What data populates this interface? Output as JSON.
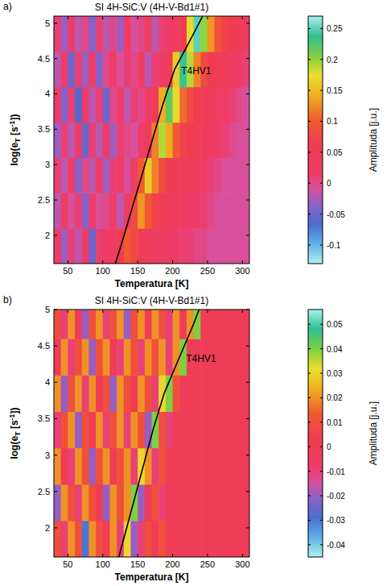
{
  "chart_data": [
    {
      "type": "heatmap",
      "label": "a)",
      "title": "SI 4H-SiC:V (4H-V-Bd1#1)",
      "x_label": "Temperatura [K]",
      "y_label": [
        "log(e",
        "T",
        " [s",
        "-1",
        "])"
      ],
      "xlim": [
        30,
        310
      ],
      "xticks": [
        50,
        100,
        150,
        200,
        250,
        300
      ],
      "ylim": [
        1.6,
        5.1
      ],
      "yticks": [
        2,
        2.5,
        3,
        3.5,
        4,
        4.5,
        5
      ],
      "x_edges": [
        30,
        40,
        50,
        60,
        70,
        80,
        90,
        100,
        110,
        120,
        130,
        140,
        150,
        160,
        170,
        180,
        190,
        200,
        210,
        220,
        230,
        240,
        250,
        260,
        270,
        280,
        290,
        300,
        310
      ],
      "y_edges": [
        1.6,
        2.1,
        2.6,
        3.1,
        3.6,
        4.1,
        4.6,
        5.1
      ],
      "cells": [
        [
          0.02,
          -0.03,
          0.01,
          -0.02,
          0.02,
          -0.05,
          0.01,
          0.02,
          0.03,
          0.06,
          0.1,
          0.08,
          0.05,
          0.04,
          0.03,
          0.03,
          0.02,
          0.02,
          0.01,
          0.01,
          0.0,
          0.0,
          -0.01,
          -0.01,
          -0.01,
          -0.01,
          -0.01,
          -0.01
        ],
        [
          -0.02,
          0.03,
          -0.01,
          0.01,
          -0.04,
          0.02,
          -0.01,
          0.0,
          0.02,
          -0.02,
          0.03,
          0.08,
          0.13,
          0.1,
          0.07,
          0.05,
          0.04,
          0.04,
          0.03,
          0.02,
          0.02,
          0.01,
          0.0,
          -0.01,
          -0.01,
          -0.01,
          -0.01,
          -0.01
        ],
        [
          0.01,
          -0.02,
          0.03,
          -0.04,
          0.0,
          -0.02,
          0.02,
          -0.03,
          0.01,
          0.02,
          -0.01,
          0.03,
          0.1,
          0.16,
          0.12,
          0.08,
          0.06,
          0.05,
          0.04,
          0.04,
          0.03,
          0.02,
          0.01,
          0.0,
          -0.01,
          -0.01,
          -0.01,
          -0.01
        ],
        [
          -0.03,
          0.01,
          -0.02,
          0.02,
          -0.05,
          0.01,
          -0.02,
          0.02,
          -0.03,
          0.01,
          0.0,
          -0.01,
          0.02,
          0.04,
          0.12,
          0.19,
          0.14,
          0.1,
          0.07,
          0.06,
          0.05,
          0.04,
          0.03,
          0.02,
          0.01,
          0.0,
          -0.01,
          -0.01
        ],
        [
          0.02,
          -0.04,
          0.01,
          -0.06,
          0.02,
          -0.02,
          0.01,
          -0.05,
          0.0,
          0.02,
          -0.02,
          0.01,
          0.0,
          0.02,
          0.04,
          0.14,
          0.22,
          0.17,
          0.11,
          0.08,
          0.06,
          0.05,
          0.04,
          0.03,
          0.02,
          0.01,
          0.0,
          -0.01
        ],
        [
          -0.02,
          0.02,
          -0.05,
          0.01,
          -0.03,
          0.02,
          -0.04,
          0.0,
          0.02,
          -0.01,
          0.01,
          0.0,
          0.03,
          -0.02,
          0.01,
          0.02,
          0.05,
          0.16,
          0.24,
          0.19,
          0.12,
          0.08,
          0.06,
          0.05,
          0.04,
          0.03,
          0.02,
          0.01
        ],
        [
          0.01,
          -0.03,
          0.02,
          -0.02,
          0.0,
          -0.04,
          0.01,
          -0.02,
          0.0,
          -0.03,
          0.02,
          -0.01,
          0.0,
          0.03,
          -0.02,
          0.01,
          0.02,
          0.03,
          0.06,
          0.17,
          0.25,
          0.2,
          0.13,
          0.09,
          0.07,
          0.06,
          0.05,
          0.04
        ]
      ],
      "colorbar": {
        "label": "Amplituda [j.u.]",
        "range": [
          -0.13,
          0.27
        ],
        "ticks": [
          -0.1,
          -0.05,
          0,
          0.05,
          0.1,
          0.15,
          0.2,
          0.25
        ]
      },
      "series": [
        {
          "name": "T4HV1",
          "type": "line",
          "color": "#000000",
          "x": [
            118,
            126,
            141,
            156,
            171,
            186,
            203,
            230,
            243
          ],
          "values": [
            1.6,
            1.85,
            2.35,
            2.85,
            3.35,
            3.85,
            4.35,
            4.85,
            5.1
          ]
        }
      ]
    },
    {
      "type": "heatmap",
      "label": "b)",
      "title": "SI 4H-SiC:V (4H-V-Bd1#1)",
      "x_label": "Temperatura [K]",
      "y_label": [
        "log(e",
        "T",
        " [s",
        "-1",
        "])"
      ],
      "xlim": [
        30,
        310
      ],
      "xticks": [
        50,
        100,
        150,
        200,
        250,
        300
      ],
      "ylim": [
        1.6,
        5.0
      ],
      "yticks": [
        2,
        2.5,
        3,
        3.5,
        4,
        4.5,
        5
      ],
      "x_edges": [
        30,
        40,
        50,
        60,
        70,
        80,
        90,
        100,
        110,
        120,
        130,
        140,
        150,
        160,
        170,
        180,
        190,
        200,
        210,
        220,
        230,
        240,
        250,
        260,
        270,
        280,
        290,
        300,
        310
      ],
      "y_edges": [
        1.6,
        2.1,
        2.6,
        3.1,
        3.6,
        4.1,
        4.6,
        5.0
      ],
      "cells": [
        [
          0.01,
          -0.01,
          0.02,
          0.01,
          -0.03,
          0.02,
          0.01,
          0.0,
          0.02,
          -0.01,
          0.03,
          -0.02,
          -0.01,
          0.01,
          0.0,
          0.01,
          0,
          0,
          0,
          0,
          0,
          0,
          0,
          0,
          0,
          0,
          0,
          0
        ],
        [
          -0.02,
          0.02,
          0.01,
          -0.01,
          0.02,
          0.01,
          0.0,
          -0.02,
          0.02,
          0.01,
          0.02,
          0.04,
          -0.02,
          0.0,
          0.01,
          -0.01,
          0,
          0,
          0,
          0,
          0,
          0,
          0,
          0,
          0,
          0,
          0,
          0
        ],
        [
          0.02,
          0.0,
          -0.01,
          0.02,
          0.01,
          -0.02,
          0.01,
          0.02,
          0.0,
          0.01,
          0.02,
          -0.01,
          0.03,
          0.02,
          -0.01,
          0.01,
          0.0,
          0,
          0,
          0,
          0,
          0,
          0,
          0,
          0,
          0,
          0,
          0
        ],
        [
          -0.01,
          0.01,
          0.02,
          -0.02,
          0.01,
          0.0,
          0.02,
          -0.01,
          0.01,
          0.02,
          -0.01,
          0.02,
          0.01,
          -0.02,
          0.04,
          0.01,
          -0.01,
          0,
          0,
          0,
          0,
          0,
          0,
          0,
          0,
          0,
          0,
          0
        ],
        [
          0.02,
          -0.02,
          0.01,
          0.02,
          -0.01,
          0.02,
          0.0,
          0.01,
          -0.02,
          0.02,
          0.01,
          0.0,
          0.02,
          0.01,
          -0.01,
          0.03,
          0.04,
          0.01,
          0,
          0,
          0,
          0,
          0,
          0,
          0,
          0,
          0,
          0
        ],
        [
          0.0,
          0.02,
          -0.01,
          0.01,
          0.02,
          -0.02,
          0.01,
          0.02,
          0.0,
          -0.01,
          0.02,
          0.01,
          -0.01,
          0.02,
          0.01,
          0.02,
          -0.01,
          0.02,
          0.04,
          0,
          0,
          0,
          0,
          0,
          0,
          0,
          0,
          0
        ],
        [
          0.01,
          -0.01,
          0.02,
          0.0,
          -0.02,
          0.01,
          0.02,
          -0.01,
          0.01,
          0.02,
          -0.02,
          0.01,
          0.02,
          0.0,
          0.02,
          0.01,
          -0.01,
          0.02,
          0.0,
          0.02,
          0.04,
          0,
          0,
          0,
          0,
          0,
          0,
          0
        ]
      ],
      "colorbar": {
        "label": "Amplituda [j.u.]",
        "range": [
          -0.045,
          0.056
        ],
        "ticks": [
          -0.04,
          -0.03,
          -0.02,
          -0.01,
          0,
          0.01,
          0.02,
          0.03,
          0.04,
          0.05
        ]
      },
      "series": [
        {
          "name": "T4HV1",
          "type": "line",
          "color": "#000000",
          "x": [
            123,
            130,
            144,
            158,
            172,
            188,
            210,
            230,
            238
          ],
          "values": [
            1.6,
            1.85,
            2.35,
            2.85,
            3.35,
            3.85,
            4.35,
            4.8,
            5.0
          ]
        }
      ]
    }
  ]
}
